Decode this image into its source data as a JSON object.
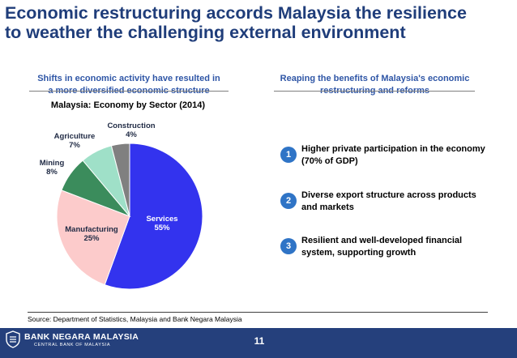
{
  "title": {
    "line1": "Economic restructuring accords Malaysia the resilience",
    "line2": "to weather the challenging external environment"
  },
  "left_heading": {
    "line1": "Shifts in economic activity have resulted in",
    "line2": "a more diversified economic structure"
  },
  "right_heading": {
    "line1": "Reaping the benefits of Malaysia's economic",
    "line2": "restructuring and reforms"
  },
  "chart_data": {
    "type": "pie",
    "title": "Malaysia: Economy by Sector (2014)",
    "slices": [
      {
        "label": "Services",
        "value": 55,
        "pct_label": "55%",
        "color": "#3333ee"
      },
      {
        "label": "Manufacturing",
        "value": 25,
        "pct_label": "25%",
        "color": "#fccbcb"
      },
      {
        "label": "Mining",
        "value": 8,
        "pct_label": "8%",
        "color": "#3b8c5c"
      },
      {
        "label": "Agriculture",
        "value": 7,
        "pct_label": "7%",
        "color": "#9fe0c8"
      },
      {
        "label": "Construction",
        "value": 4,
        "pct_label": "4%",
        "color": "#808080"
      }
    ]
  },
  "points": [
    {
      "num": "1",
      "line1": "Higher private participation in the economy",
      "line2": "(70% of GDP)"
    },
    {
      "num": "2",
      "line1": "Diverse export structure across products",
      "line2": "and markets"
    },
    {
      "num": "3",
      "line1": "Resilient and well-developed financial",
      "line2": "system, supporting growth"
    }
  ],
  "source": "Source: Department of Statistics, Malaysia and Bank Negara Malaysia",
  "footer": {
    "brand": "BANK NEGARA MALAYSIA",
    "brand_sub": "CENTRAL BANK OF MALAYSIA",
    "page_number": "11"
  },
  "colors": {
    "title": "#1f3d7a",
    "heading": "#2f56a6",
    "badge": "#2f74c6",
    "footer": "#25407c"
  }
}
